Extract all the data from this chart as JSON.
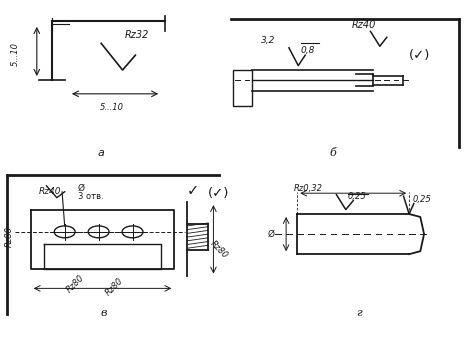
{
  "bg_color": "#ffffff",
  "line_color": "#1a1a1a",
  "label_a": "а",
  "label_b": "б",
  "label_v": "в",
  "label_g": "г",
  "text_Rz32": "Rz32",
  "text_510a": "5...10",
  "text_510b": "5...10",
  "text_Rz40b": "Rz40",
  "text_32": "3,2",
  "text_08": "0,8",
  "text_Rz40v": "Rz40",
  "text_3otv": "3 отв.",
  "text_Rz80a": "Rz80",
  "text_Rz80b": "Rz80",
  "text_Rz80c": "Rz80",
  "text_Rz80d": "Rz80",
  "text_Rz032": "Rz0,32",
  "text_025a": "0,25",
  "text_025b": "0,25",
  "text_phi": "Ø",
  "fontsize_main": 6.5,
  "fontsize_label": 8,
  "lw": 1.0
}
